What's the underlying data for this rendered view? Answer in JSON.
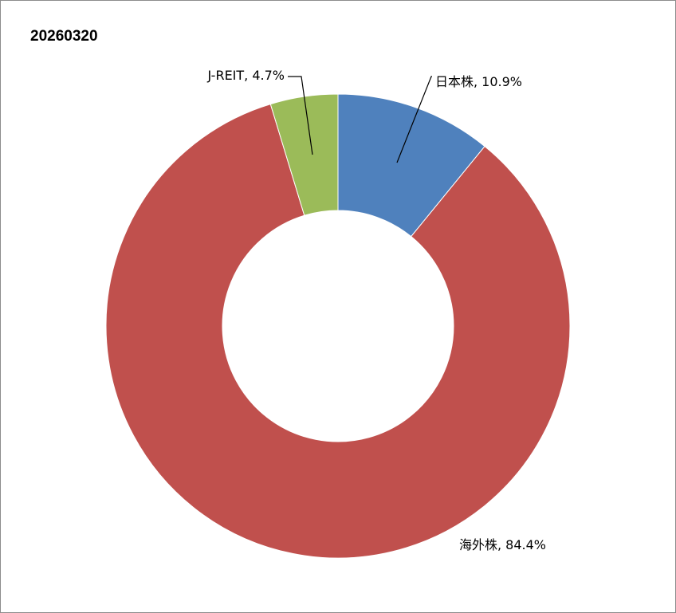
{
  "chart_data": {
    "type": "pie",
    "donut": true,
    "title": "20260320",
    "slices": [
      {
        "label": "日本株",
        "value": 10.9,
        "display": "10.9%",
        "color": "#4f81bd"
      },
      {
        "label": "海外株",
        "value": 84.4,
        "display": "84.4%",
        "color": "#c0504d"
      },
      {
        "label": "J-REIT",
        "value": 4.7,
        "display": "4.7%",
        "color": "#9bbb59"
      }
    ],
    "start_angle": "12 o'clock",
    "direction": "clockwise",
    "legend": "none",
    "data_labels": "outside with leader lines"
  }
}
